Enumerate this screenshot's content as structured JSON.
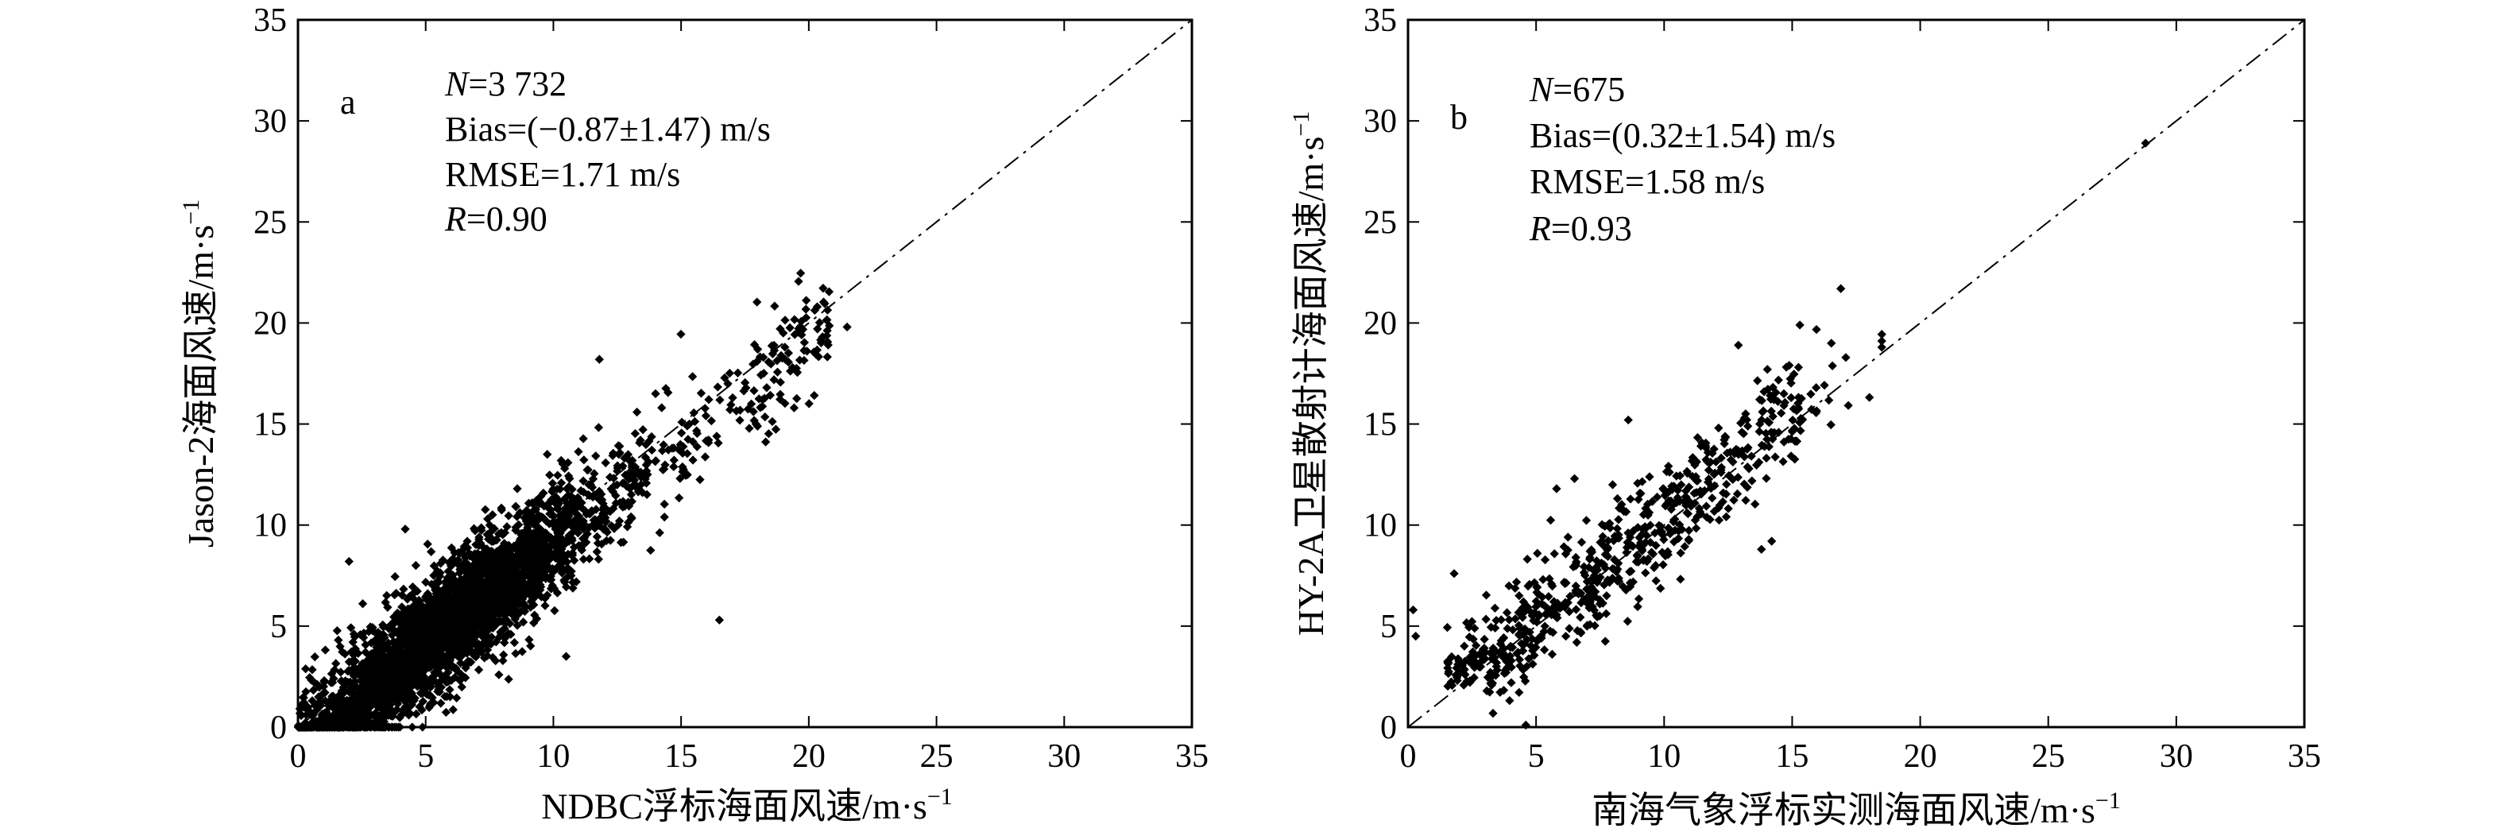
{
  "chart_data": [
    {
      "type": "scatter",
      "panel_label": "a",
      "xlabel": "NDBC浮标海面风速/m·s",
      "xlabel_sup": "−1",
      "ylabel": "Jason-2海面风速/m·s",
      "ylabel_sup": "−1",
      "xlim": [
        0,
        35
      ],
      "ylim": [
        0,
        35
      ],
      "xticks": [
        "0",
        "5",
        "10",
        "15",
        "20",
        "25",
        "30",
        "35"
      ],
      "yticks": [
        "0",
        "5",
        "10",
        "15",
        "20",
        "25",
        "30",
        "35"
      ],
      "reference_line": "1:1 dashed",
      "stats": {
        "n_sym": "N",
        "n_val": "=3 732",
        "bias": "Bias=(−0.87±1.47) m/s",
        "rmse": "RMSE=1.71 m/s",
        "r_sym": "R",
        "r_val": "=0.90"
      },
      "cluster": {
        "description_values": "dense cloud of points along y≈x−0.9, x from 0 to 22",
        "x_range": [
          0,
          22
        ],
        "bias": -0.87,
        "sd": 1.47,
        "outliers": [
          [
            11.8,
            18.2
          ],
          [
            16.5,
            5.3
          ],
          [
            21.5,
            19.8
          ],
          [
            14,
            16.5
          ],
          [
            4.2,
            9.8
          ],
          [
            2,
            8.2
          ],
          [
            19,
            19.5
          ],
          [
            18,
            18.7
          ],
          [
            10.5,
            3.5
          ]
        ]
      }
    },
    {
      "type": "scatter",
      "panel_label": "b",
      "xlabel": "南海气象浮标实测海面风速/m·s",
      "xlabel_sup": "−1",
      "ylabel": "HY-2A卫星散射计海面风速/m·s",
      "ylabel_sup": "−1",
      "xlim": [
        0,
        35
      ],
      "ylim": [
        0,
        35
      ],
      "xticks": [
        "0",
        "5",
        "10",
        "15",
        "20",
        "25",
        "30",
        "35"
      ],
      "yticks": [
        "0",
        "5",
        "10",
        "15",
        "20",
        "25",
        "30",
        "35"
      ],
      "reference_line": "1:1 dashed",
      "stats": {
        "n_sym": "N",
        "n_val": "=675",
        "bias": "Bias=(0.32±1.54) m/s",
        "rmse": "RMSE=1.58 m/s",
        "r_sym": "R",
        "r_val": "=0.93"
      },
      "cluster": {
        "description_values": "points along y≈x+0.3, x from 0 to 19",
        "x_range": [
          0.3,
          18.5
        ],
        "bias": 0.32,
        "sd": 1.54,
        "outliers": [
          [
            16.9,
            21.7
          ],
          [
            15.3,
            19.9
          ],
          [
            12.9,
            18.9
          ],
          [
            28.8,
            28.9
          ],
          [
            5.8,
            11.8
          ],
          [
            6.5,
            12.3
          ],
          [
            8.6,
            15.2
          ],
          [
            1.8,
            7.6
          ],
          [
            4.6,
            0.1
          ],
          [
            0.2,
            5.8
          ],
          [
            0.3,
            4.5
          ],
          [
            18.5,
            18.8
          ],
          [
            14.2,
            9.2
          ],
          [
            13.8,
            8.8
          ]
        ]
      }
    }
  ]
}
